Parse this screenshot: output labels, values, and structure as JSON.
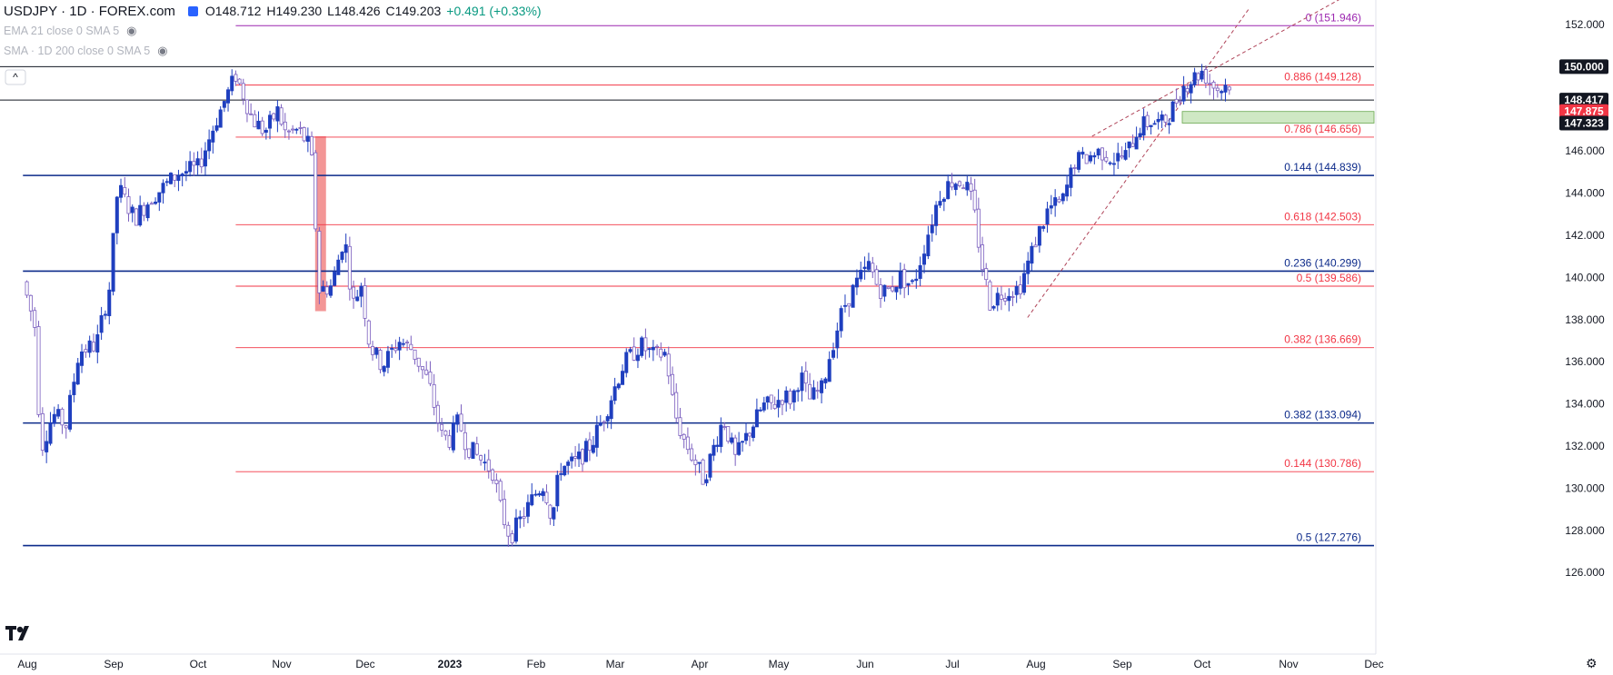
{
  "header": {
    "title": "USDJPY · 1D · FOREX.com",
    "open": "O148.712",
    "high": "H149.230",
    "low": "L148.426",
    "close": "C149.203",
    "change": "+0.491 (+0.33%)"
  },
  "indicators": [
    {
      "label": "EMA 21 close 0 SMA 5",
      "icon": "eye-slash-icon"
    },
    {
      "label": "SMA · 1D 200 close 0 SMA 5",
      "icon": "eye-slash-icon"
    }
  ],
  "colors": {
    "bull": "#1f3fbf",
    "bear": "#7b5fbf",
    "fib": "#f23645",
    "sr": "#0c2a8a",
    "tl": "#b0455a"
  },
  "chart_data": {
    "type": "candlestick",
    "symbol": "USDJPY",
    "timeframe": "1D",
    "ylim": [
      125.3,
      153.2
    ],
    "y_ticks": [
      126,
      128,
      130,
      132,
      134,
      136,
      138,
      140,
      142,
      144,
      146,
      148,
      150,
      152
    ],
    "y_tick_labels": [
      "126.000",
      "128.000",
      "130.000",
      "132.000",
      "134.000",
      "136.000",
      "138.000",
      "140.000",
      "142.000",
      "144.000",
      "146.000",
      "148.000",
      "150.000",
      "152.000"
    ],
    "x_labels": [
      {
        "t": 0.0,
        "label": "Aug"
      },
      {
        "t": 1.0,
        "label": "Sep"
      },
      {
        "t": 2.0,
        "label": "Oct"
      },
      {
        "t": 3.0,
        "label": "Nov"
      },
      {
        "t": 4.0,
        "label": "Dec"
      },
      {
        "t": 5.0,
        "label": "2023"
      },
      {
        "t": 6.0,
        "label": "Feb"
      },
      {
        "t": 7.0,
        "label": "Mar"
      },
      {
        "t": 8.0,
        "label": "Apr"
      },
      {
        "t": 9.0,
        "label": "May"
      },
      {
        "t": 10.0,
        "label": "Jun"
      },
      {
        "t": 11.0,
        "label": "Jul"
      },
      {
        "t": 12.0,
        "label": "Aug"
      },
      {
        "t": 13.0,
        "label": "Sep"
      },
      {
        "t": 14.0,
        "label": "Oct"
      },
      {
        "t": 15.0,
        "label": "Nov"
      },
      {
        "t": 16.0,
        "label": "Dec"
      }
    ],
    "price_path": [
      [
        -0.05,
        139.8
      ],
      [
        0.1,
        137.5
      ],
      [
        0.15,
        131.8
      ],
      [
        0.3,
        133.5
      ],
      [
        0.45,
        133.0
      ],
      [
        0.6,
        136.5
      ],
      [
        0.8,
        136.8
      ],
      [
        0.95,
        139.5
      ],
      [
        1.05,
        144.3
      ],
      [
        1.25,
        142.8
      ],
      [
        1.45,
        143.8
      ],
      [
        1.6,
        144.3
      ],
      [
        1.75,
        144.9
      ],
      [
        2.0,
        145.2
      ],
      [
        2.2,
        147.3
      ],
      [
        2.45,
        149.6
      ],
      [
        2.55,
        148.6
      ],
      [
        2.65,
        147.5
      ],
      [
        2.8,
        146.9
      ],
      [
        2.95,
        147.9
      ],
      [
        3.05,
        146.8
      ],
      [
        3.2,
        147.0
      ],
      [
        3.35,
        146.1
      ],
      [
        3.45,
        139.4
      ],
      [
        3.6,
        139.6
      ],
      [
        3.75,
        142.0
      ],
      [
        3.85,
        138.7
      ],
      [
        3.95,
        139.7
      ],
      [
        4.05,
        136.8
      ],
      [
        4.2,
        135.8
      ],
      [
        4.4,
        137.0
      ],
      [
        4.55,
        136.6
      ],
      [
        4.75,
        135.0
      ],
      [
        4.9,
        132.5
      ],
      [
        5.0,
        132.3
      ],
      [
        5.1,
        133.2
      ],
      [
        5.2,
        132.0
      ],
      [
        5.35,
        131.4
      ],
      [
        5.5,
        130.8
      ],
      [
        5.6,
        128.8
      ],
      [
        5.7,
        127.7
      ],
      [
        5.85,
        128.7
      ],
      [
        6.0,
        129.8
      ],
      [
        6.1,
        130.2
      ],
      [
        6.2,
        128.5
      ],
      [
        6.3,
        131.0
      ],
      [
        6.5,
        131.2
      ],
      [
        6.7,
        132.1
      ],
      [
        6.9,
        133.8
      ],
      [
        7.1,
        135.9
      ],
      [
        7.3,
        136.8
      ],
      [
        7.45,
        136.3
      ],
      [
        7.6,
        136.4
      ],
      [
        7.7,
        133.6
      ],
      [
        7.8,
        132.4
      ],
      [
        7.95,
        131.2
      ],
      [
        8.05,
        130.4
      ],
      [
        8.2,
        132.2
      ],
      [
        8.3,
        133.3
      ],
      [
        8.45,
        131.4
      ],
      [
        8.6,
        132.5
      ],
      [
        8.8,
        133.9
      ],
      [
        8.95,
        134.0
      ],
      [
        9.05,
        134.4
      ],
      [
        9.15,
        134.2
      ],
      [
        9.25,
        135.4
      ],
      [
        9.35,
        134.2
      ],
      [
        9.5,
        134.7
      ],
      [
        9.6,
        136.5
      ],
      [
        9.75,
        138.6
      ],
      [
        9.9,
        139.7
      ],
      [
        10.05,
        140.6
      ],
      [
        10.15,
        139.5
      ],
      [
        10.25,
        139.3
      ],
      [
        10.4,
        140.0
      ],
      [
        10.55,
        139.6
      ],
      [
        10.7,
        141.8
      ],
      [
        10.85,
        143.9
      ],
      [
        11.0,
        144.6
      ],
      [
        11.15,
        144.5
      ],
      [
        11.25,
        143.4
      ],
      [
        11.35,
        140.7
      ],
      [
        11.45,
        138.8
      ],
      [
        11.6,
        139.3
      ],
      [
        11.8,
        139.5
      ],
      [
        11.9,
        140.6
      ],
      [
        12.0,
        141.8
      ],
      [
        12.15,
        143.3
      ],
      [
        12.3,
        143.5
      ],
      [
        12.45,
        145.5
      ],
      [
        12.6,
        145.7
      ],
      [
        12.75,
        146.0
      ],
      [
        12.9,
        145.6
      ],
      [
        13.05,
        145.8
      ],
      [
        13.2,
        147.1
      ],
      [
        13.35,
        147.4
      ],
      [
        13.5,
        147.3
      ],
      [
        13.6,
        147.8
      ],
      [
        13.75,
        149.0
      ],
      [
        13.9,
        149.5
      ],
      [
        14.0,
        149.8
      ],
      [
        14.1,
        149.2
      ],
      [
        14.2,
        148.9
      ],
      [
        14.3,
        149.2
      ]
    ],
    "candle_samples_per_month": 22,
    "bull_color": "#1f3fbf",
    "bear_color": "#7b5fbf",
    "fib_levels": [
      {
        "price": 151.946,
        "label": "0 (151.946)",
        "t0": 2.45,
        "color": "#9c27b0"
      },
      {
        "price": 149.128,
        "label": "0.886 (149.128)",
        "t0": 2.45,
        "color": "#f23645"
      },
      {
        "price": 146.656,
        "label": "0.786 (146.656)",
        "t0": 2.45,
        "color": "#f23645"
      },
      {
        "price": 144.839,
        "label": "0.144 (144.839)",
        "t0": -0.05,
        "color": "#0c2a8a"
      },
      {
        "price": 142.503,
        "label": "0.618 (142.503)",
        "t0": 2.45,
        "color": "#f23645"
      },
      {
        "price": 140.299,
        "label": "0.236 (140.299)",
        "t0": -0.05,
        "color": "#0c2a8a"
      },
      {
        "price": 139.586,
        "label": "0.5 (139.586)",
        "t0": 2.45,
        "color": "#f23645"
      },
      {
        "price": 136.669,
        "label": "0.382 (136.669)",
        "t0": 2.45,
        "color": "#f23645"
      },
      {
        "price": 133.094,
        "label": "0.382 (133.094)",
        "t0": -0.05,
        "color": "#0c2a8a"
      },
      {
        "price": 130.786,
        "label": "0.144 (130.786)",
        "t0": 2.45,
        "color": "#f23645"
      },
      {
        "price": 127.276,
        "label": "0.5 (127.276)",
        "t0": -0.05,
        "color": "#0c2a8a"
      }
    ],
    "horizontal_lines": [
      {
        "price": 150.0,
        "label": "150.000",
        "color": "#131722"
      },
      {
        "price": 148.417,
        "label": "148.417",
        "color": "#131722"
      }
    ],
    "price_tags": [
      {
        "price": 150.0,
        "label": "150.000",
        "bg": "#131722"
      },
      {
        "price": 148.417,
        "label": "148.417",
        "bg": "#131722"
      },
      {
        "price": 147.875,
        "label": "147.875",
        "bg": "#f23645"
      },
      {
        "price": 147.323,
        "label": "147.323",
        "bg": "#131722"
      }
    ],
    "zone": {
      "t0": 13.75,
      "t1": 16.5,
      "low": 147.323,
      "high": 147.875,
      "color": "#cfe8c4"
    },
    "red_block": {
      "t0": 3.4,
      "t1": 3.53,
      "low": 138.4,
      "high": 146.7,
      "color": "#f28b8b"
    },
    "trendlines": [
      {
        "p1": [
          12.65,
          146.7
        ],
        "p2": [
          15.6,
          153.2
        ]
      },
      {
        "p1": [
          11.9,
          138.1
        ],
        "p2": [
          14.55,
          152.8
        ]
      }
    ]
  }
}
